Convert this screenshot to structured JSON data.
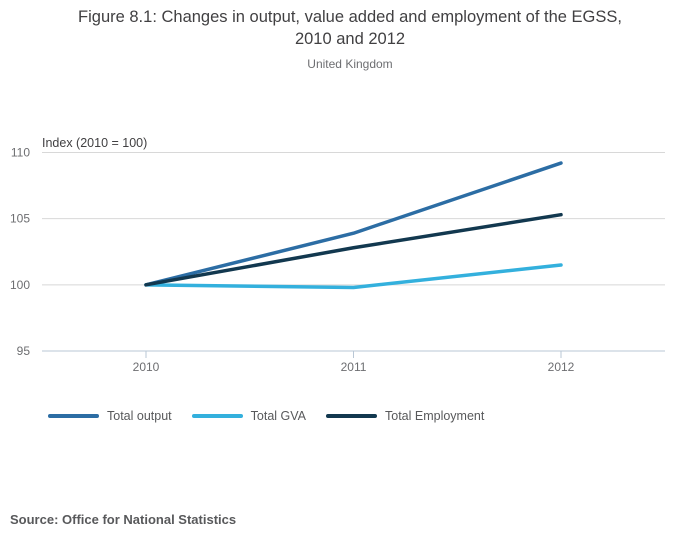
{
  "title": "Figure 8.1: Changes in output, value added and employment of the EGSS, 2010 and 2012",
  "subtitle": "United Kingdom",
  "source": "Source: Office for National Statistics",
  "chart_data": {
    "type": "line",
    "title": "Figure 8.1: Changes in output, value added and employment of the EGSS, 2010 and 2012",
    "subtitle": "United Kingdom",
    "axis_title": "Index (2010 = 100)",
    "categories": [
      "2010",
      "2011",
      "2012"
    ],
    "y_ticks": [
      95,
      100,
      105,
      110
    ],
    "ylim": [
      95,
      110
    ],
    "grid": true,
    "legend_position": "bottom",
    "series": [
      {
        "name": "Total output",
        "color": "#2c6da4",
        "values": [
          100,
          103.9,
          109.2
        ]
      },
      {
        "name": "Total GVA",
        "color": "#33b0dd",
        "values": [
          100,
          99.8,
          101.5
        ]
      },
      {
        "name": "Total Employment",
        "color": "#12384f",
        "values": [
          100,
          102.8,
          105.3
        ]
      }
    ],
    "colors": {
      "gridline": "#d8d8d8",
      "axis_line": "#b9c7d5",
      "tick_label": "#6d6e71"
    }
  }
}
